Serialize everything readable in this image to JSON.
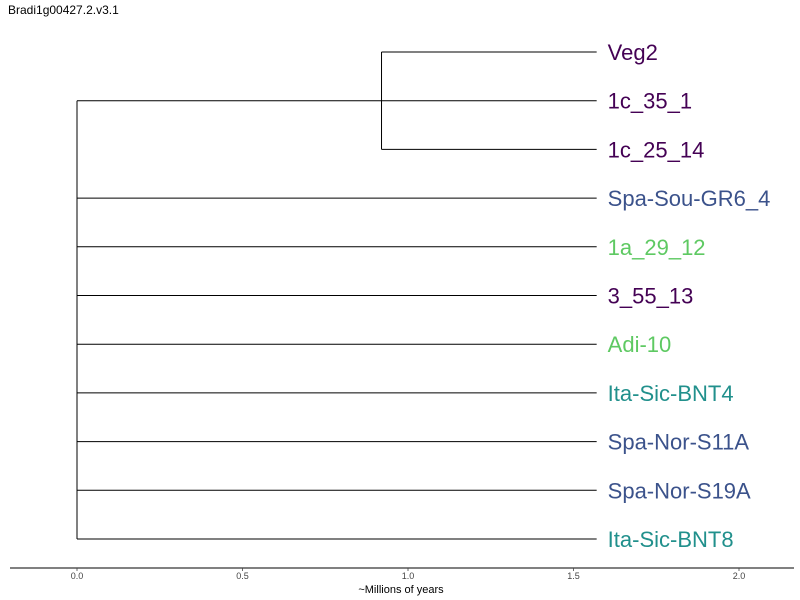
{
  "title": "Bradi1g00427.2.v3.1",
  "xlabel": "~Millions of years",
  "x_ticks": [
    "0.0",
    "0.5",
    "1.0",
    "1.5",
    "2.0"
  ],
  "x_range": [
    0.0,
    2.0
  ],
  "palette": {
    "purple": "#440154",
    "blue": "#3b528b",
    "teal": "#21908c",
    "green": "#5ec962",
    "line": "#000000"
  },
  "chart_data": {
    "type": "dendrogram",
    "leaves": [
      {
        "name": "Veg2",
        "color": "#440154"
      },
      {
        "name": "1c_35_1",
        "color": "#440154"
      },
      {
        "name": "1c_25_14",
        "color": "#440154"
      },
      {
        "name": "Spa-Sou-GR6_4",
        "color": "#3b528b"
      },
      {
        "name": "1a_29_12",
        "color": "#5ec962"
      },
      {
        "name": "3_55_13",
        "color": "#440154"
      },
      {
        "name": "Adi-10",
        "color": "#5ec962"
      },
      {
        "name": "Ita-Sic-BNT4",
        "color": "#21908c"
      },
      {
        "name": "Spa-Nor-S11A",
        "color": "#3b528b"
      },
      {
        "name": "Spa-Nor-S19A",
        "color": "#3b528b"
      },
      {
        "name": "Ita-Sic-BNT8",
        "color": "#21908c"
      }
    ],
    "root_x": 0.0,
    "tip_x": 1.57,
    "clades": [
      {
        "members": [
          "Veg2",
          "1c_35_1",
          "1c_25_14"
        ],
        "node_x": 0.92
      }
    ]
  }
}
